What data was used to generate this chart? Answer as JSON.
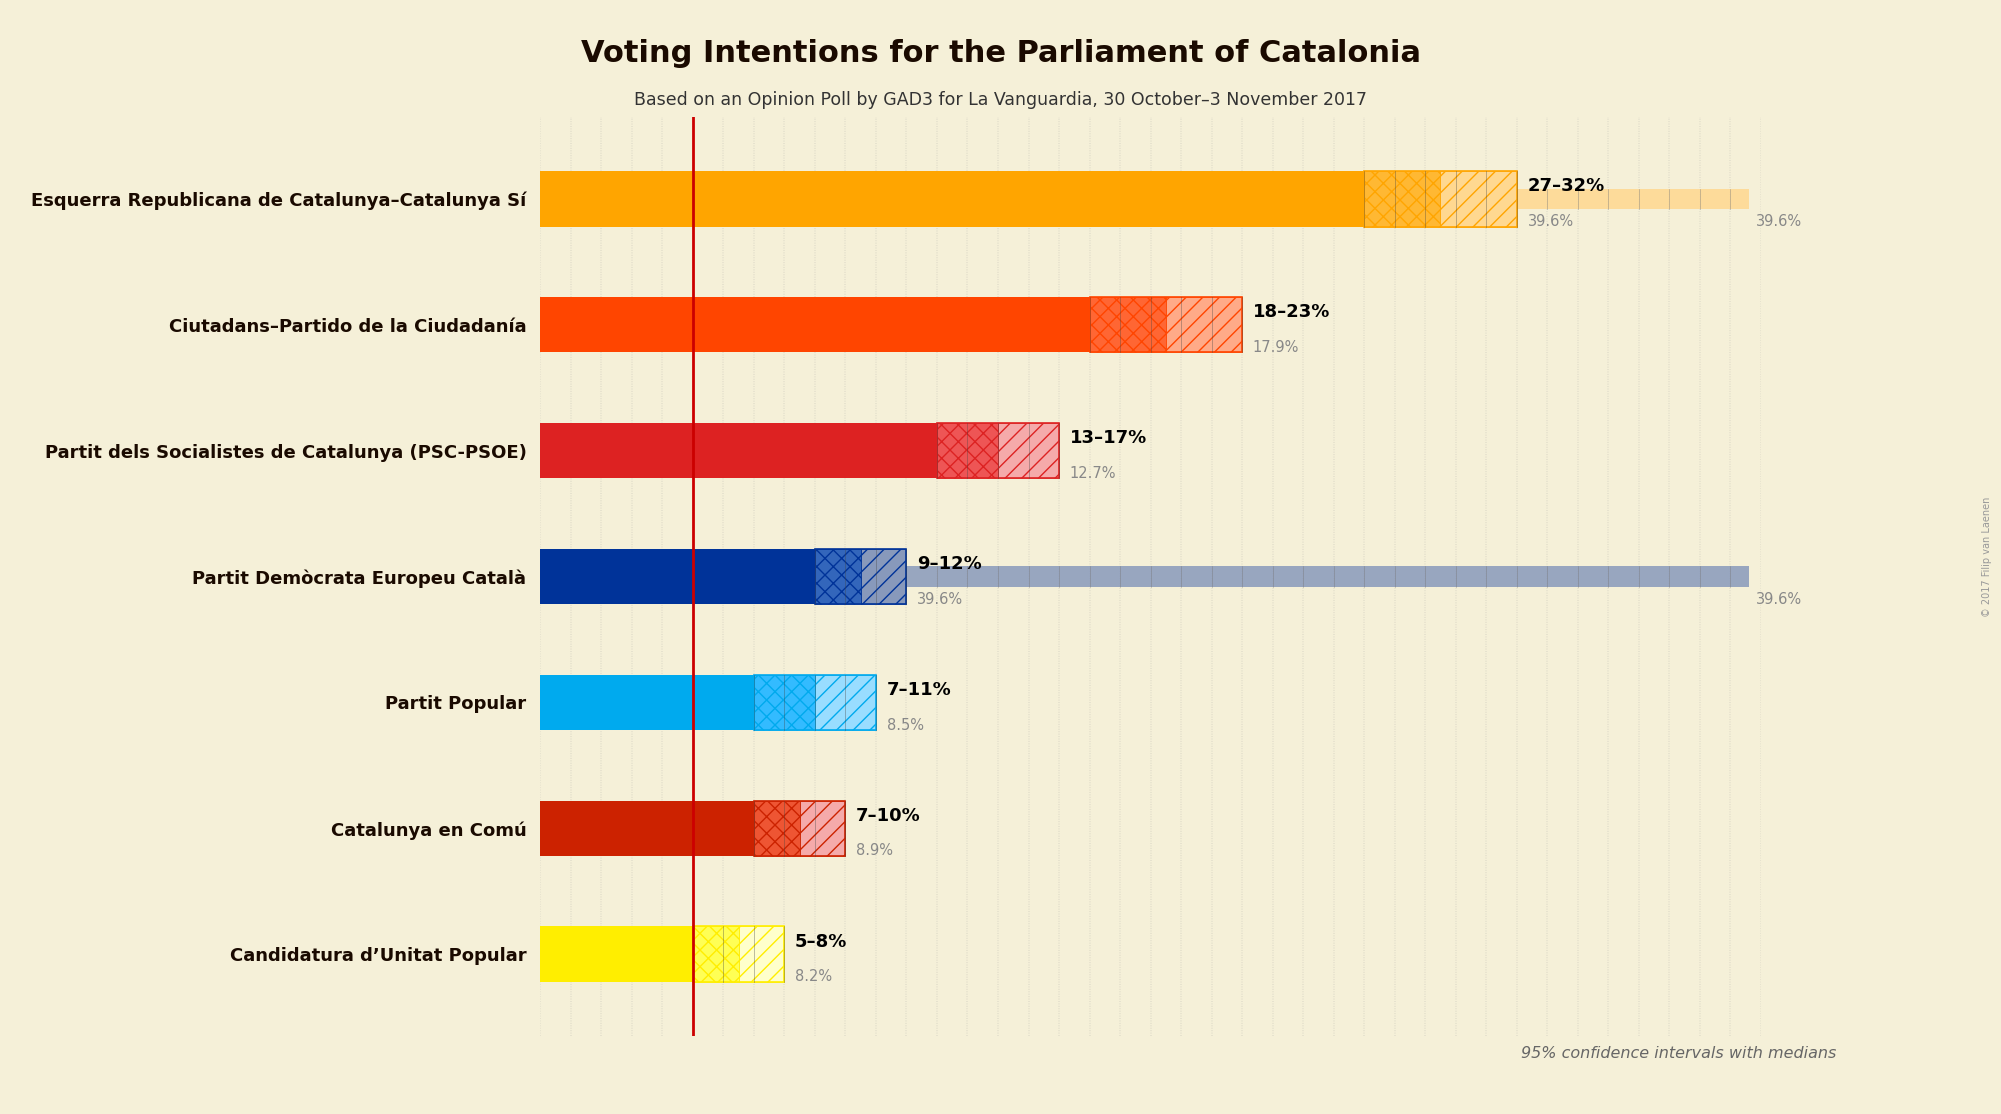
{
  "title": "Voting Intentions for the Parliament of Catalonia",
  "subtitle": "Based on an Opinion Poll by GAD3 for La Vanguardia, 30 October–3 November 2017",
  "copyright": "© 2017 Filip van Laenen",
  "bg_color": "#f5f0d8",
  "parties": [
    {
      "name": "Esquerra Republicana de Catalunya–Catalunya Sí",
      "color": "#FFA500",
      "ci_color": "#FFB833",
      "light_color": "#FFD890",
      "bar_high": 27,
      "ci_low": 27,
      "ci_high": 32,
      "label": "27–32%",
      "median_label": "39.6%",
      "extended_bar": 39.6
    },
    {
      "name": "Ciutadans–Partido de la Ciudadanía",
      "color": "#FF4500",
      "ci_color": "#FF6633",
      "light_color": "#FFAA88",
      "bar_high": 18,
      "ci_low": 18,
      "ci_high": 23,
      "label": "18–23%",
      "median_label": "17.9%",
      "extended_bar": null
    },
    {
      "name": "Partit dels Socialistes de Catalunya (PSC-PSOE)",
      "color": "#DD2222",
      "ci_color": "#EE5555",
      "light_color": "#F5AAAA",
      "bar_high": 13,
      "ci_low": 13,
      "ci_high": 17,
      "label": "13–17%",
      "median_label": "12.7%",
      "extended_bar": null
    },
    {
      "name": "Partit Demòcrata Europeu Català",
      "color": "#003399",
      "ci_color": "#3366BB",
      "light_color": "#8899BB",
      "bar_high": 9,
      "ci_low": 9,
      "ci_high": 12,
      "label": "9–12%",
      "median_label": "39.6%",
      "extended_bar": 39.6
    },
    {
      "name": "Partit Popular",
      "color": "#00AAEE",
      "ci_color": "#33BBFF",
      "light_color": "#99DDFF",
      "bar_high": 7,
      "ci_low": 7,
      "ci_high": 11,
      "label": "7–11%",
      "median_label": "8.5%",
      "extended_bar": null
    },
    {
      "name": "Catalunya en Comú",
      "color": "#CC2200",
      "ci_color": "#EE5533",
      "light_color": "#F5AAAA",
      "bar_high": 7,
      "ci_low": 7,
      "ci_high": 10,
      "label": "7–10%",
      "median_label": "8.9%",
      "extended_bar": null
    },
    {
      "name": "Candidatura d’Unitat Popular",
      "color": "#FFEE00",
      "ci_color": "#FFFF55",
      "light_color": "#FFFFCC",
      "bar_high": 5,
      "ci_low": 5,
      "ci_high": 8,
      "label": "5–8%",
      "median_label": "8.2%",
      "extended_bar": null
    }
  ],
  "x_max": 40,
  "red_line_x": 5.0,
  "footnote": "95% confidence intervals with medians"
}
